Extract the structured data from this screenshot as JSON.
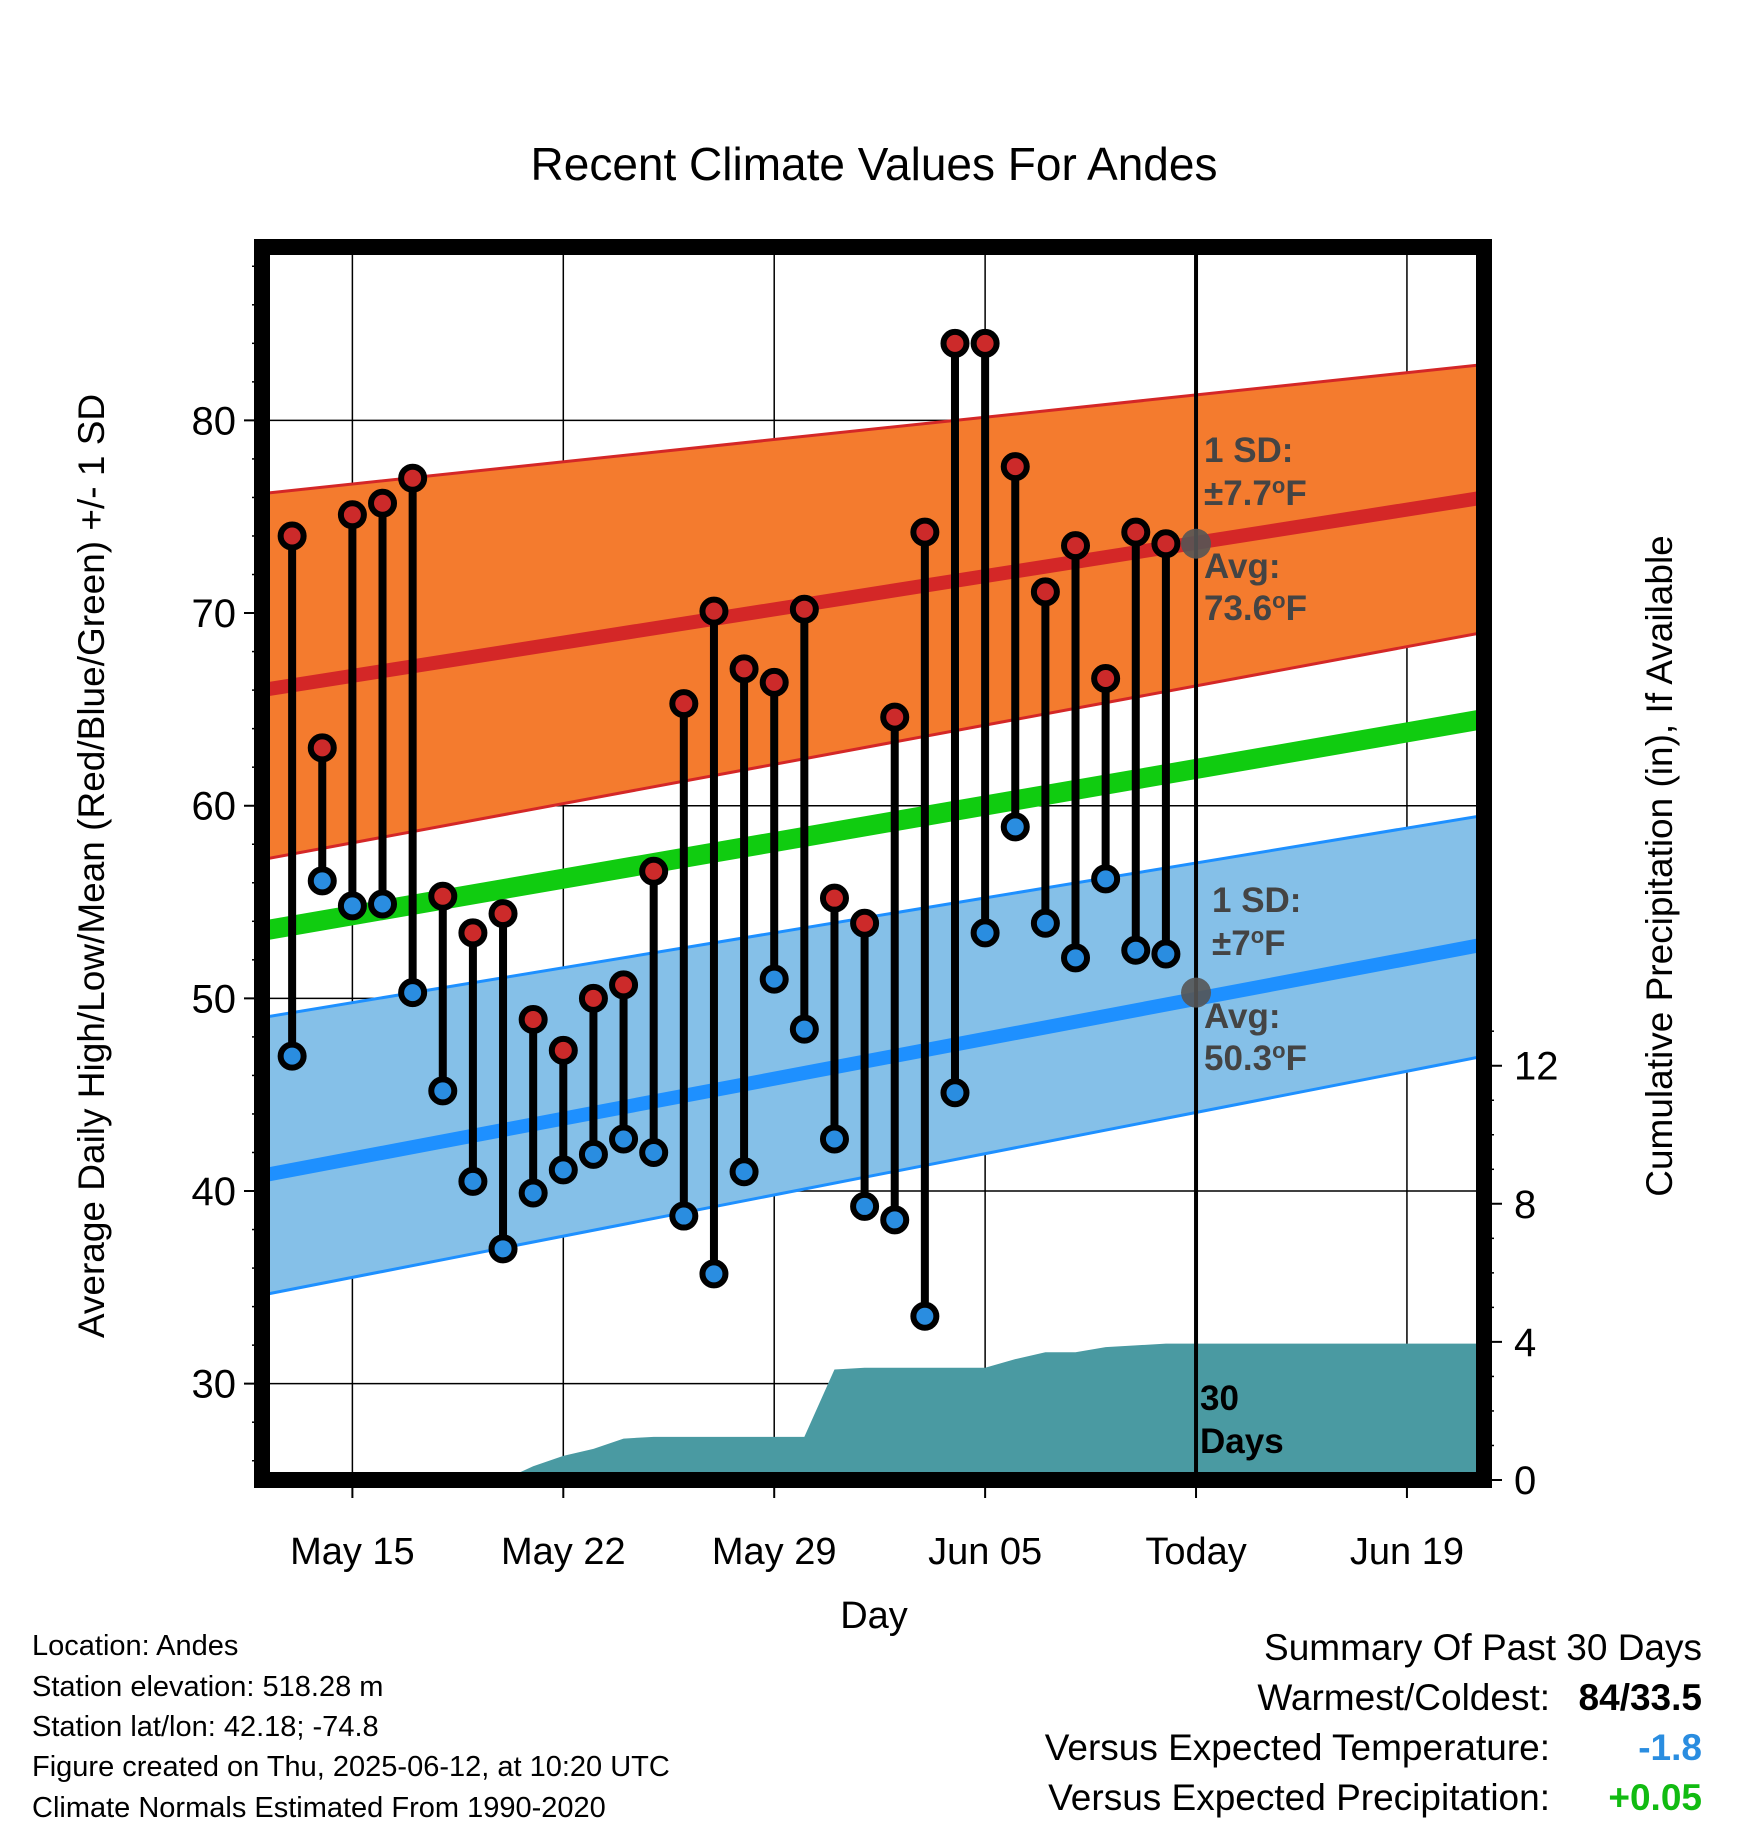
{
  "chart_data": {
    "type": "line",
    "title": "Recent Climate Values For Andes",
    "xlabel": "Day",
    "ylabel_left": "Average Daily High/Low/Mean (Red/Blue/Green) +/- 1 SD",
    "ylabel_right": "Cumulative Precipitation (in), If Available",
    "ylim_left": [
      25,
      89
    ],
    "ylim_right": [
      0,
      30
    ],
    "left_ticks": [
      "30",
      "40",
      "50",
      "60",
      "70",
      "80"
    ],
    "right_ticks": [
      "0",
      "4",
      "8",
      "12"
    ],
    "x_tick_labels": [
      "May 15",
      "May 22",
      "May 29",
      "Jun 05",
      "Today",
      "Jun 19"
    ],
    "today_marker_label": "30 Days",
    "days": [
      "May 13",
      "May 14",
      "May 15",
      "May 16",
      "May 17",
      "May 18",
      "May 19",
      "May 20",
      "May 21",
      "May 22",
      "May 23",
      "May 24",
      "May 25",
      "May 26",
      "May 27",
      "May 28",
      "May 29",
      "May 30",
      "May 31",
      "Jun 01",
      "Jun 02",
      "Jun 03",
      "Jun 04",
      "Jun 05",
      "Jun 06",
      "Jun 07",
      "Jun 08",
      "Jun 09",
      "Jun 10",
      "Jun 11"
    ],
    "highs": [
      74,
      63,
      75.1,
      75.7,
      77,
      55.3,
      53.4,
      54.4,
      48.9,
      47.3,
      50,
      50.7,
      56.6,
      65.3,
      70.1,
      67.1,
      66.4,
      70.2,
      55.2,
      53.9,
      64.6,
      74.2,
      84,
      84,
      77.6,
      71.1,
      73.5,
      66.6,
      74.2,
      73.6
    ],
    "lows": [
      47,
      56.1,
      54.8,
      54.9,
      50.3,
      45.2,
      40.5,
      37,
      39.9,
      41.1,
      41.9,
      42.7,
      42,
      38.7,
      35.7,
      41,
      51,
      48.4,
      42.7,
      39.2,
      38.5,
      33.5,
      45.1,
      53.4,
      58.9,
      53.9,
      52.1,
      56.2,
      52.5,
      52.3
    ],
    "normal_high": {
      "start": 66.0,
      "end": 76.0,
      "sd_upper_start": 76.2,
      "sd_upper_end": 82.9,
      "sd_lower_start": 57.2,
      "sd_lower_end": 69.0
    },
    "normal_low": {
      "start": 40.8,
      "end": 52.8,
      "sd_upper_start": 49.0,
      "sd_upper_end": 59.5,
      "sd_lower_start": 34.6,
      "sd_lower_end": 47.0
    },
    "normal_mean": {
      "start": 53.5,
      "end": 64.5
    },
    "precip_days": [
      "May 13",
      "May 19",
      "May 20",
      "May 21",
      "May 22",
      "May 23",
      "May 24",
      "May 25",
      "May 26",
      "May 27",
      "May 28",
      "May 29",
      "May 30",
      "May 31",
      "Jun 01",
      "Jun 02",
      "Jun 03",
      "Jun 04",
      "Jun 05",
      "Jun 06",
      "Jun 07",
      "Jun 08",
      "Jun 09",
      "Jun 10",
      "Jun 11",
      "Jun 12",
      "Jun 23"
    ],
    "precip_cumulative": [
      0,
      0,
      0,
      0.4,
      0.7,
      0.9,
      1.2,
      1.25,
      1.25,
      1.25,
      1.25,
      1.25,
      1.25,
      3.2,
      3.25,
      3.25,
      3.25,
      3.25,
      3.25,
      3.5,
      3.7,
      3.7,
      3.85,
      3.9,
      3.95,
      3.95,
      3.95
    ],
    "annotations": {
      "high_sd_label": "1 SD:",
      "high_sd_value": "±7.7°F",
      "high_avg_label": "Avg:",
      "high_avg_value": "73.6°F",
      "low_sd_label": "1 SD:",
      "low_sd_value": "±7°F",
      "low_avg_label": "Avg:",
      "low_avg_value": "50.3°F",
      "today_high_avg": 73.6,
      "today_low_avg": 50.3
    },
    "grid": true
  },
  "colors": {
    "high_band": "#f47b2e",
    "high_line": "#d42727",
    "low_band": "#85c0e8",
    "low_line": "#1e90ff",
    "mean_line": "#10cc10",
    "precip": "#4a9aa2",
    "high_dot": "#cc2a2a",
    "low_dot": "#2a8de0",
    "annotation_text": "#444444",
    "temp_anomaly": "#2a8de0",
    "precip_anomaly": "#11bb11"
  },
  "footer": {
    "location": "Location: Andes",
    "elevation": "Station elevation: 518.28 m",
    "latlon": "Station lat/lon: 42.18; -74.8",
    "created": "Figure created on Thu, 2025-06-12, at 10:20 UTC",
    "normals": "Climate Normals Estimated From 1990-2020"
  },
  "summary": {
    "title": "Summary Of Past 30 Days",
    "warmest_label": "Warmest/Coldest:",
    "warmest_value": "84/33.5",
    "temp_label": "Versus Expected Temperature:",
    "temp_value": "-1.8",
    "precip_label": "Versus Expected Precipitation:",
    "precip_value": "+0.05"
  }
}
